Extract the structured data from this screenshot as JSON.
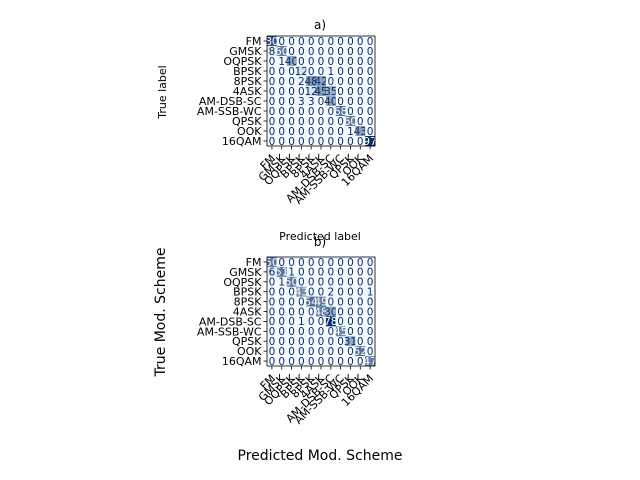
{
  "chart_data": [
    {
      "type": "heatmap",
      "title": "a)",
      "xlabel": "Predicted label",
      "ylabel": "True label",
      "categories": [
        "FM",
        "GMSK",
        "OQPSK",
        "BPSK",
        "8PSK",
        "4ASK",
        "AM-DSB-SC",
        "AM-SSB-WC",
        "QPSK",
        "OOK",
        "16QAM"
      ],
      "matrix": [
        [
          80,
          0,
          0,
          0,
          0,
          0,
          0,
          0,
          0,
          0,
          0
        ],
        [
          8,
          60,
          0,
          0,
          0,
          0,
          0,
          0,
          0,
          0,
          0
        ],
        [
          0,
          1,
          40,
          0,
          0,
          0,
          0,
          0,
          0,
          0,
          0
        ],
        [
          0,
          0,
          0,
          12,
          0,
          0,
          1,
          0,
          0,
          0,
          0
        ],
        [
          0,
          0,
          0,
          2,
          48,
          42,
          0,
          0,
          0,
          0,
          0
        ],
        [
          0,
          0,
          0,
          0,
          12,
          45,
          35,
          0,
          0,
          0,
          0
        ],
        [
          0,
          0,
          0,
          3,
          3,
          0,
          40,
          0,
          0,
          0,
          0
        ],
        [
          0,
          0,
          0,
          0,
          0,
          0,
          0,
          68,
          0,
          0,
          0
        ],
        [
          0,
          0,
          0,
          0,
          0,
          0,
          0,
          0,
          60,
          0,
          0
        ],
        [
          0,
          0,
          0,
          0,
          0,
          0,
          0,
          0,
          1,
          43,
          0
        ],
        [
          0,
          0,
          0,
          0,
          0,
          0,
          0,
          0,
          0,
          0,
          97
        ]
      ],
      "cmap": [
        "#f7fbff",
        "#08306b"
      ]
    },
    {
      "type": "heatmap",
      "title": "b)",
      "xlabel": "Predicted Mod. Scheme",
      "ylabel": "True Mod. Scheme",
      "categories": [
        "FM",
        "GMSK",
        "OQPSK",
        "BPSK",
        "8PSK",
        "4ASK",
        "AM-DSB-SC",
        "AM-SSB-WC",
        "QPSK",
        "OOK",
        "16QAM"
      ],
      "matrix": [
        [
          50,
          0,
          0,
          0,
          0,
          0,
          0,
          0,
          0,
          0,
          0
        ],
        [
          6,
          51,
          1,
          0,
          0,
          0,
          0,
          0,
          0,
          0,
          0
        ],
        [
          0,
          1,
          50,
          0,
          0,
          0,
          0,
          0,
          0,
          0,
          0
        ],
        [
          0,
          0,
          0,
          43,
          0,
          0,
          2,
          0,
          0,
          0,
          1
        ],
        [
          0,
          0,
          0,
          0,
          54,
          49,
          0,
          0,
          0,
          0,
          0
        ],
        [
          0,
          0,
          0,
          0,
          0,
          48,
          30,
          0,
          0,
          0,
          0
        ],
        [
          0,
          0,
          0,
          1,
          0,
          0,
          78,
          0,
          0,
          0,
          0
        ],
        [
          0,
          0,
          0,
          0,
          0,
          0,
          0,
          45,
          0,
          0,
          0
        ],
        [
          0,
          0,
          0,
          0,
          0,
          0,
          0,
          0,
          31,
          0,
          0
        ],
        [
          0,
          0,
          0,
          0,
          0,
          0,
          0,
          0,
          0,
          52,
          0
        ],
        [
          0,
          0,
          0,
          0,
          0,
          0,
          0,
          0,
          0,
          0,
          47
        ]
      ],
      "cmap": [
        "#f7fbff",
        "#08306b"
      ]
    }
  ]
}
